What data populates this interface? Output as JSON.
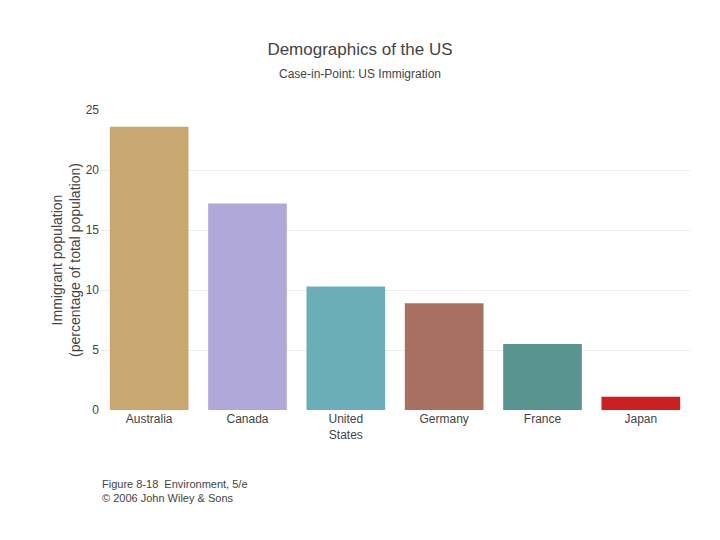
{
  "chart_data": {
    "type": "bar",
    "title": "Demographics of the US",
    "subtitle": "Case-in-Point: US Immigration",
    "categories": [
      "Australia",
      "Canada",
      "United\nStates",
      "Germany",
      "France",
      "Japan"
    ],
    "values": [
      23.6,
      17.2,
      10.3,
      8.9,
      5.5,
      1.1
    ],
    "colors": [
      "#C8A870",
      "#B0A8D8",
      "#6BADB8",
      "#A87060",
      "#5A9490",
      "#CC2020"
    ],
    "ylabel": "Immigrant population\n(percentage of total population)",
    "ylim": [
      0,
      25
    ],
    "yticks": [
      0,
      5,
      10,
      15,
      20,
      25
    ],
    "grid": true,
    "annotations": [
      "Figure 8-18  Environment, 5/e\n© 2006 John Wiley & Sons"
    ]
  }
}
